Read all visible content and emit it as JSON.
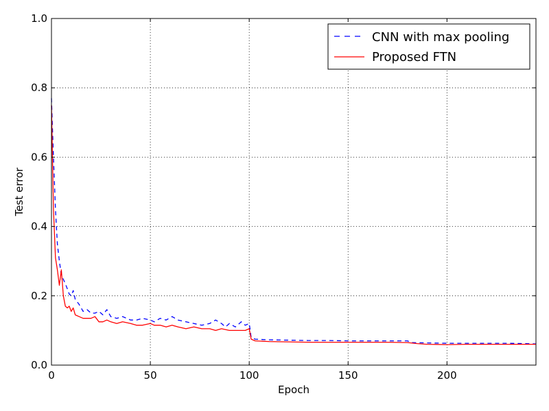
{
  "chart_data": {
    "type": "line",
    "title": "",
    "xlabel": "Epoch",
    "ylabel": "Test error",
    "xlim": [
      0,
      245
    ],
    "ylim": [
      0.0,
      1.0
    ],
    "x_ticks": [
      "0",
      "50",
      "100",
      "150",
      "200"
    ],
    "y_ticks": [
      "0.0",
      "0.2",
      "0.4",
      "0.6",
      "0.8",
      "1.0"
    ],
    "grid": true,
    "legend_position": "top-right",
    "series": [
      {
        "name": "CNN with max pooling",
        "color": "#0000ff",
        "style": "dashed",
        "points": [
          [
            0,
            0.77
          ],
          [
            1,
            0.6
          ],
          [
            2,
            0.45
          ],
          [
            3,
            0.35
          ],
          [
            4,
            0.3
          ],
          [
            5,
            0.26
          ],
          [
            7,
            0.235
          ],
          [
            8,
            0.22
          ],
          [
            9,
            0.205
          ],
          [
            10,
            0.2
          ],
          [
            11,
            0.215
          ],
          [
            12,
            0.19
          ],
          [
            14,
            0.175
          ],
          [
            16,
            0.155
          ],
          [
            18,
            0.16
          ],
          [
            20,
            0.15
          ],
          [
            22,
            0.15
          ],
          [
            24,
            0.155
          ],
          [
            26,
            0.145
          ],
          [
            28,
            0.16
          ],
          [
            30,
            0.14
          ],
          [
            33,
            0.135
          ],
          [
            36,
            0.14
          ],
          [
            40,
            0.13
          ],
          [
            43,
            0.13
          ],
          [
            46,
            0.135
          ],
          [
            50,
            0.13
          ],
          [
            52,
            0.125
          ],
          [
            55,
            0.135
          ],
          [
            58,
            0.13
          ],
          [
            61,
            0.14
          ],
          [
            64,
            0.13
          ],
          [
            68,
            0.125
          ],
          [
            72,
            0.12
          ],
          [
            76,
            0.115
          ],
          [
            80,
            0.12
          ],
          [
            83,
            0.13
          ],
          [
            86,
            0.12
          ],
          [
            88,
            0.11
          ],
          [
            90,
            0.12
          ],
          [
            93,
            0.11
          ],
          [
            96,
            0.125
          ],
          [
            98,
            0.115
          ],
          [
            100,
            0.12
          ],
          [
            101,
            0.08
          ],
          [
            103,
            0.075
          ],
          [
            110,
            0.073
          ],
          [
            120,
            0.072
          ],
          [
            130,
            0.071
          ],
          [
            140,
            0.071
          ],
          [
            150,
            0.07
          ],
          [
            160,
            0.07
          ],
          [
            170,
            0.07
          ],
          [
            180,
            0.07
          ],
          [
            182,
            0.065
          ],
          [
            190,
            0.064
          ],
          [
            200,
            0.063
          ],
          [
            210,
            0.063
          ],
          [
            220,
            0.063
          ],
          [
            230,
            0.063
          ],
          [
            240,
            0.062
          ],
          [
            245,
            0.061
          ]
        ]
      },
      {
        "name": "Proposed FTN",
        "color": "#ff0000",
        "style": "solid",
        "points": [
          [
            0,
            0.75
          ],
          [
            1,
            0.45
          ],
          [
            2,
            0.31
          ],
          [
            3,
            0.275
          ],
          [
            4,
            0.23
          ],
          [
            5,
            0.275
          ],
          [
            6,
            0.2
          ],
          [
            7,
            0.17
          ],
          [
            8,
            0.165
          ],
          [
            9,
            0.17
          ],
          [
            10,
            0.155
          ],
          [
            11,
            0.165
          ],
          [
            12,
            0.145
          ],
          [
            14,
            0.14
          ],
          [
            16,
            0.135
          ],
          [
            18,
            0.135
          ],
          [
            20,
            0.135
          ],
          [
            22,
            0.14
          ],
          [
            24,
            0.125
          ],
          [
            26,
            0.125
          ],
          [
            28,
            0.13
          ],
          [
            30,
            0.125
          ],
          [
            33,
            0.12
          ],
          [
            36,
            0.125
          ],
          [
            40,
            0.12
          ],
          [
            43,
            0.115
          ],
          [
            46,
            0.115
          ],
          [
            50,
            0.12
          ],
          [
            52,
            0.115
          ],
          [
            55,
            0.115
          ],
          [
            58,
            0.11
          ],
          [
            61,
            0.115
          ],
          [
            64,
            0.11
          ],
          [
            68,
            0.105
          ],
          [
            72,
            0.11
          ],
          [
            76,
            0.105
          ],
          [
            80,
            0.105
          ],
          [
            83,
            0.1
          ],
          [
            86,
            0.105
          ],
          [
            90,
            0.1
          ],
          [
            93,
            0.1
          ],
          [
            96,
            0.1
          ],
          [
            98,
            0.1
          ],
          [
            100,
            0.105
          ],
          [
            101,
            0.075
          ],
          [
            103,
            0.07
          ],
          [
            110,
            0.068
          ],
          [
            120,
            0.067
          ],
          [
            130,
            0.066
          ],
          [
            140,
            0.066
          ],
          [
            150,
            0.066
          ],
          [
            160,
            0.066
          ],
          [
            170,
            0.066
          ],
          [
            180,
            0.065
          ],
          [
            185,
            0.062
          ],
          [
            190,
            0.06
          ],
          [
            200,
            0.059
          ],
          [
            210,
            0.06
          ],
          [
            220,
            0.06
          ],
          [
            230,
            0.06
          ],
          [
            240,
            0.06
          ],
          [
            245,
            0.06
          ]
        ]
      }
    ]
  }
}
